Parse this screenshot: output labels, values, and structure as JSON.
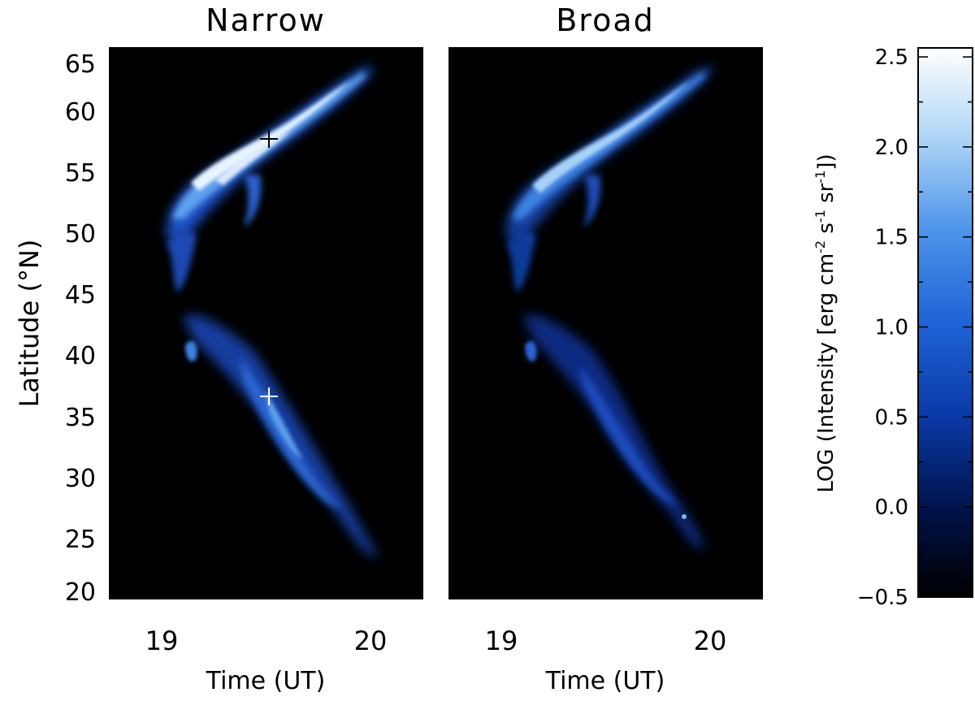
{
  "chart_data": [
    {
      "type": "heatmap",
      "title": "Narrow",
      "xlabel": "Time (UT)",
      "ylabel": "Latitude (°N)",
      "xlim": [
        18.75,
        20.25
      ],
      "ylim": [
        20,
        66
      ],
      "xticks": [
        "19",
        "20"
      ],
      "yticks": [
        "20",
        "25",
        "30",
        "35",
        "40",
        "45",
        "50",
        "55",
        "60",
        "65"
      ],
      "markers": [
        {
          "x": 19.52,
          "y": 57.6,
          "color": "#000000"
        },
        {
          "x": 19.52,
          "y": 36.5,
          "color": "#ffffff"
        }
      ]
    },
    {
      "type": "heatmap",
      "title": "Broad",
      "xlabel": "Time (UT)",
      "ylabel": "",
      "xlim": [
        18.75,
        20.25
      ],
      "ylim": [
        20,
        66
      ],
      "xticks": [
        "19",
        "20"
      ],
      "yticks": [],
      "markers": []
    }
  ],
  "colorbar": {
    "label_main": "LOG (Intensity [erg cm",
    "label_exp1": "-2",
    "label_mid1": " s",
    "label_exp2": "-1",
    "label_mid2": " sr",
    "label_exp3": "-1",
    "label_end": "])",
    "range": [
      -0.5,
      2.55
    ],
    "tick_labels": [
      "−0.5",
      "0.0",
      "0.5",
      "1.0",
      "1.5",
      "2.0",
      "2.5"
    ],
    "tick_values": [
      -0.5,
      0.0,
      0.5,
      1.0,
      1.5,
      2.0,
      2.5
    ],
    "colors": [
      "#000000",
      "#00124a",
      "#0a3aa8",
      "#1f63d6",
      "#4d95ea",
      "#b0d6f6",
      "#ffffff"
    ]
  }
}
